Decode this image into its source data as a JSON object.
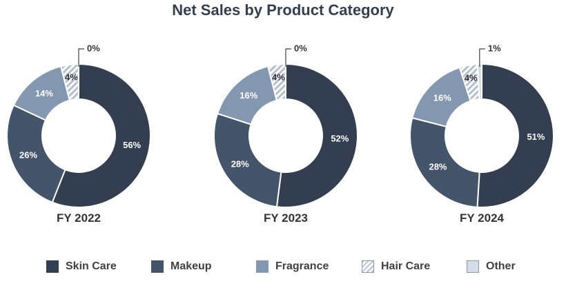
{
  "chart_data": {
    "type": "pie",
    "title": "Net Sales by Product Category",
    "categories": [
      "Skin Care",
      "Makeup",
      "Fragrance",
      "Hair Care",
      "Other"
    ],
    "colors": {
      "Skin Care": "#333f50",
      "Makeup": "#44546a",
      "Fragrance": "#8497b0",
      "Hair Care": "hatched-#b4bfd0",
      "Other": "#d6dce5"
    },
    "legend_position": "bottom",
    "charts": [
      {
        "label": "FY 2022",
        "values": [
          56,
          26,
          14,
          4,
          0
        ],
        "value_labels": [
          "56%",
          "26%",
          "14%",
          "4%",
          "0%"
        ]
      },
      {
        "label": "FY 2023",
        "values": [
          52,
          28,
          16,
          4,
          0
        ],
        "value_labels": [
          "52%",
          "28%",
          "16%",
          "4%",
          "0%"
        ]
      },
      {
        "label": "FY 2024",
        "values": [
          51,
          28,
          16,
          4,
          1
        ],
        "value_labels": [
          "51%",
          "28%",
          "16%",
          "4%",
          "1%"
        ]
      }
    ]
  }
}
